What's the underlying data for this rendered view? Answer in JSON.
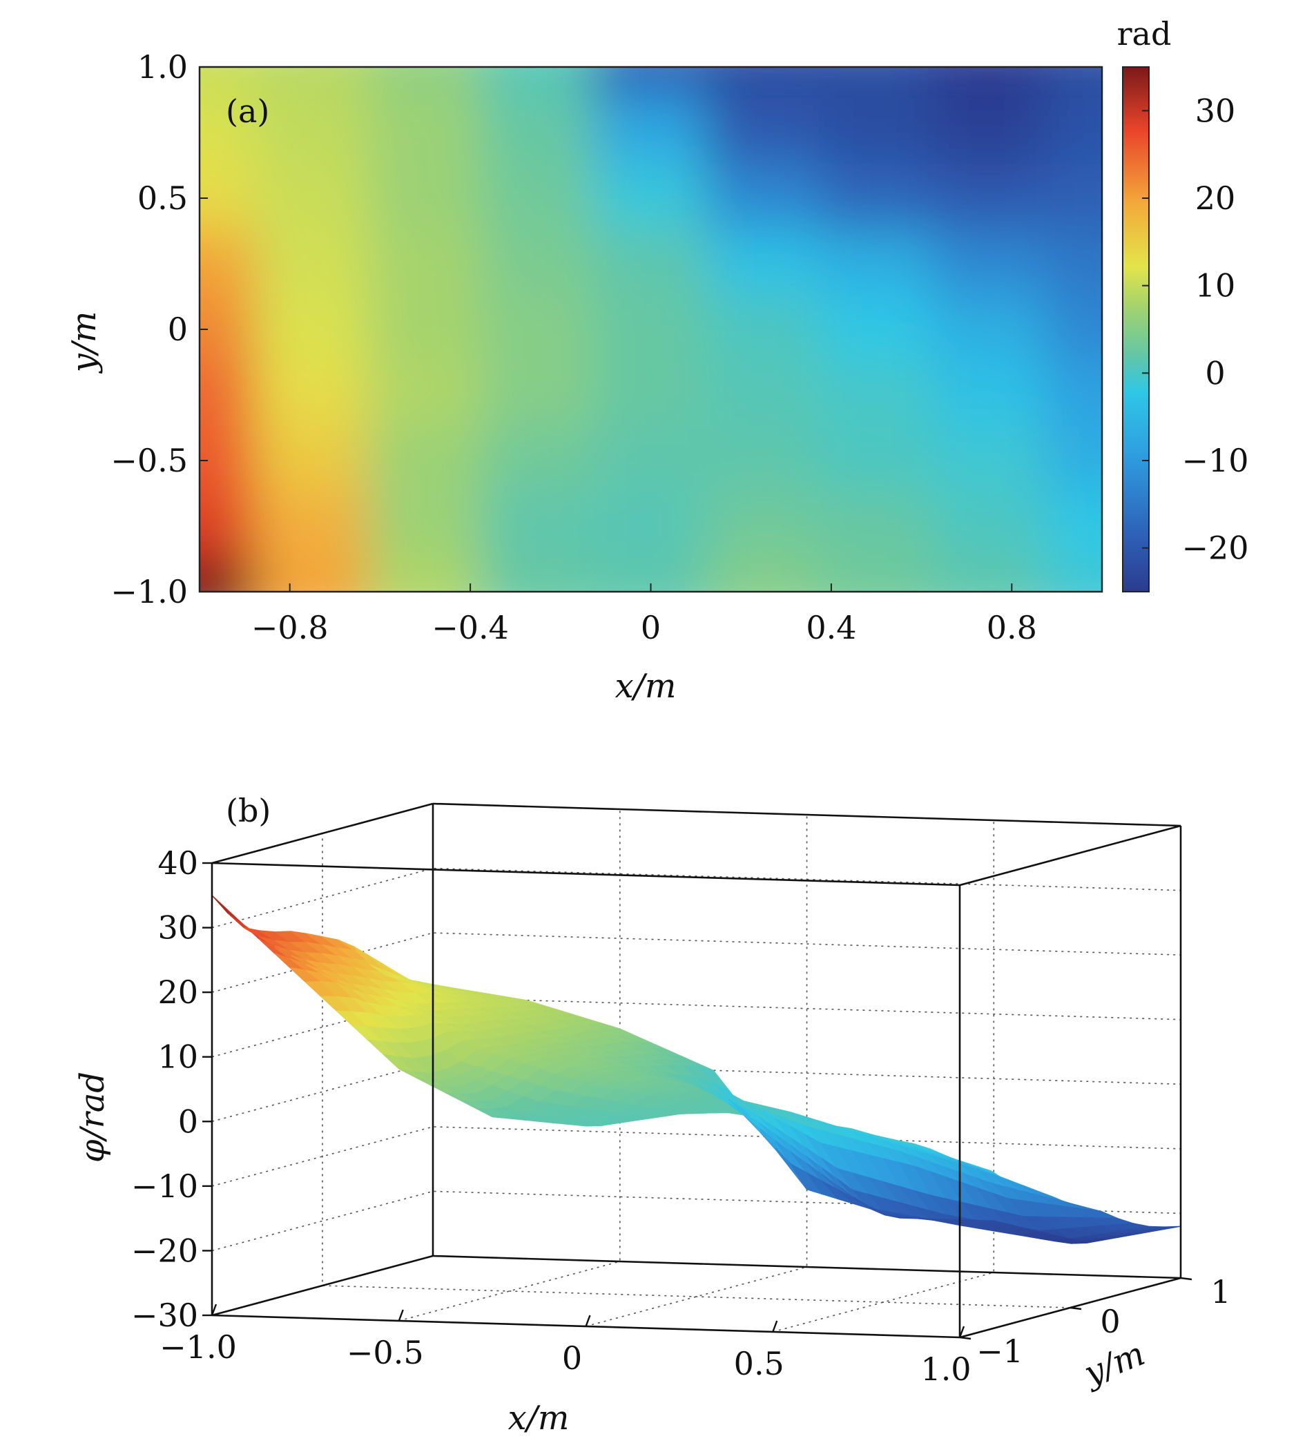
{
  "chart_data": [
    {
      "type": "heatmap",
      "panel_label": "(a)",
      "xlabel": "x/m",
      "ylabel": "y/m",
      "xlim": [
        -1.0,
        1.0
      ],
      "ylim": [
        -1.0,
        1.0
      ],
      "xticks": [
        {
          "value": -0.8,
          "label": "−0.8"
        },
        {
          "value": -0.4,
          "label": "−0.4"
        },
        {
          "value": 0,
          "label": "0"
        },
        {
          "value": 0.4,
          "label": "0.4"
        },
        {
          "value": 0.8,
          "label": "0.8"
        }
      ],
      "yticks": [
        {
          "value": 1.0,
          "label": "1.0"
        },
        {
          "value": 0.5,
          "label": "0.5"
        },
        {
          "value": 0,
          "label": "0"
        },
        {
          "value": -0.5,
          "label": "−0.5"
        },
        {
          "value": -1.0,
          "label": "−1.0"
        }
      ],
      "colorbar": {
        "unit": "rad",
        "range": [
          -25,
          35
        ],
        "ticks": [
          {
            "value": 30,
            "label": "30"
          },
          {
            "value": 20,
            "label": "20"
          },
          {
            "value": 10,
            "label": "10"
          },
          {
            "value": 0,
            "label": "0"
          },
          {
            "value": -10,
            "label": "−10"
          },
          {
            "value": -20,
            "label": "−20"
          }
        ]
      },
      "grid_x": [
        -1.0,
        -0.75,
        -0.5,
        -0.25,
        0,
        0.25,
        0.5,
        0.75,
        1.0
      ],
      "grid_y": [
        1.0,
        0.75,
        0.5,
        0.25,
        0,
        -0.25,
        -0.5,
        -0.75,
        -1.0
      ],
      "z": [
        [
          12,
          10,
          6,
          0,
          -18,
          -22,
          -22,
          -25,
          -22
        ],
        [
          14,
          11,
          7,
          2,
          -10,
          -20,
          -22,
          -24,
          -21
        ],
        [
          16,
          12,
          7,
          3,
          -4,
          -14,
          -18,
          -20,
          -19
        ],
        [
          22,
          13,
          8,
          4,
          1,
          -6,
          -9,
          -14,
          -16
        ],
        [
          24,
          14,
          8,
          5,
          2,
          -1,
          -5,
          -9,
          -14
        ],
        [
          26,
          16,
          9,
          5,
          2,
          0,
          -2,
          -6,
          -11
        ],
        [
          27,
          18,
          7,
          3,
          1,
          1,
          -1,
          -3,
          -9
        ],
        [
          29,
          21,
          7,
          1,
          0,
          3,
          2,
          -1,
          -5
        ],
        [
          35,
          22,
          9,
          2,
          1,
          5,
          3,
          1,
          -3
        ]
      ],
      "colormap": [
        "#2b3b8f",
        "#2d62b8",
        "#2f9de0",
        "#2fc7e6",
        "#63c6a6",
        "#a9d46a",
        "#e3e44a",
        "#f4a93a",
        "#e9442a",
        "#7a1a1a"
      ]
    },
    {
      "type": "surface",
      "panel_label": "(b)",
      "xlabel": "x/m",
      "ylabel": "y/m",
      "zlabel": "φ/rad",
      "xlim": [
        -1.0,
        1.0
      ],
      "ylim": [
        -1,
        1
      ],
      "zlim": [
        -30,
        40
      ],
      "xticks": [
        {
          "value": -1.0,
          "label": "−1.0"
        },
        {
          "value": -0.5,
          "label": "−0.5"
        },
        {
          "value": 0,
          "label": "0"
        },
        {
          "value": 0.5,
          "label": "0.5"
        },
        {
          "value": 1.0,
          "label": "1.0"
        }
      ],
      "yticks": [
        {
          "value": -1,
          "label": "−1"
        },
        {
          "value": 0,
          "label": "0"
        },
        {
          "value": 1,
          "label": "1"
        }
      ],
      "zticks": [
        {
          "value": 40,
          "label": "40"
        },
        {
          "value": 30,
          "label": "30"
        },
        {
          "value": 20,
          "label": "20"
        },
        {
          "value": 10,
          "label": "10"
        },
        {
          "value": 0,
          "label": "0"
        },
        {
          "value": -10,
          "label": "−10"
        },
        {
          "value": -20,
          "label": "−20"
        },
        {
          "value": -30,
          "label": "−30"
        }
      ],
      "grid": true
    }
  ]
}
